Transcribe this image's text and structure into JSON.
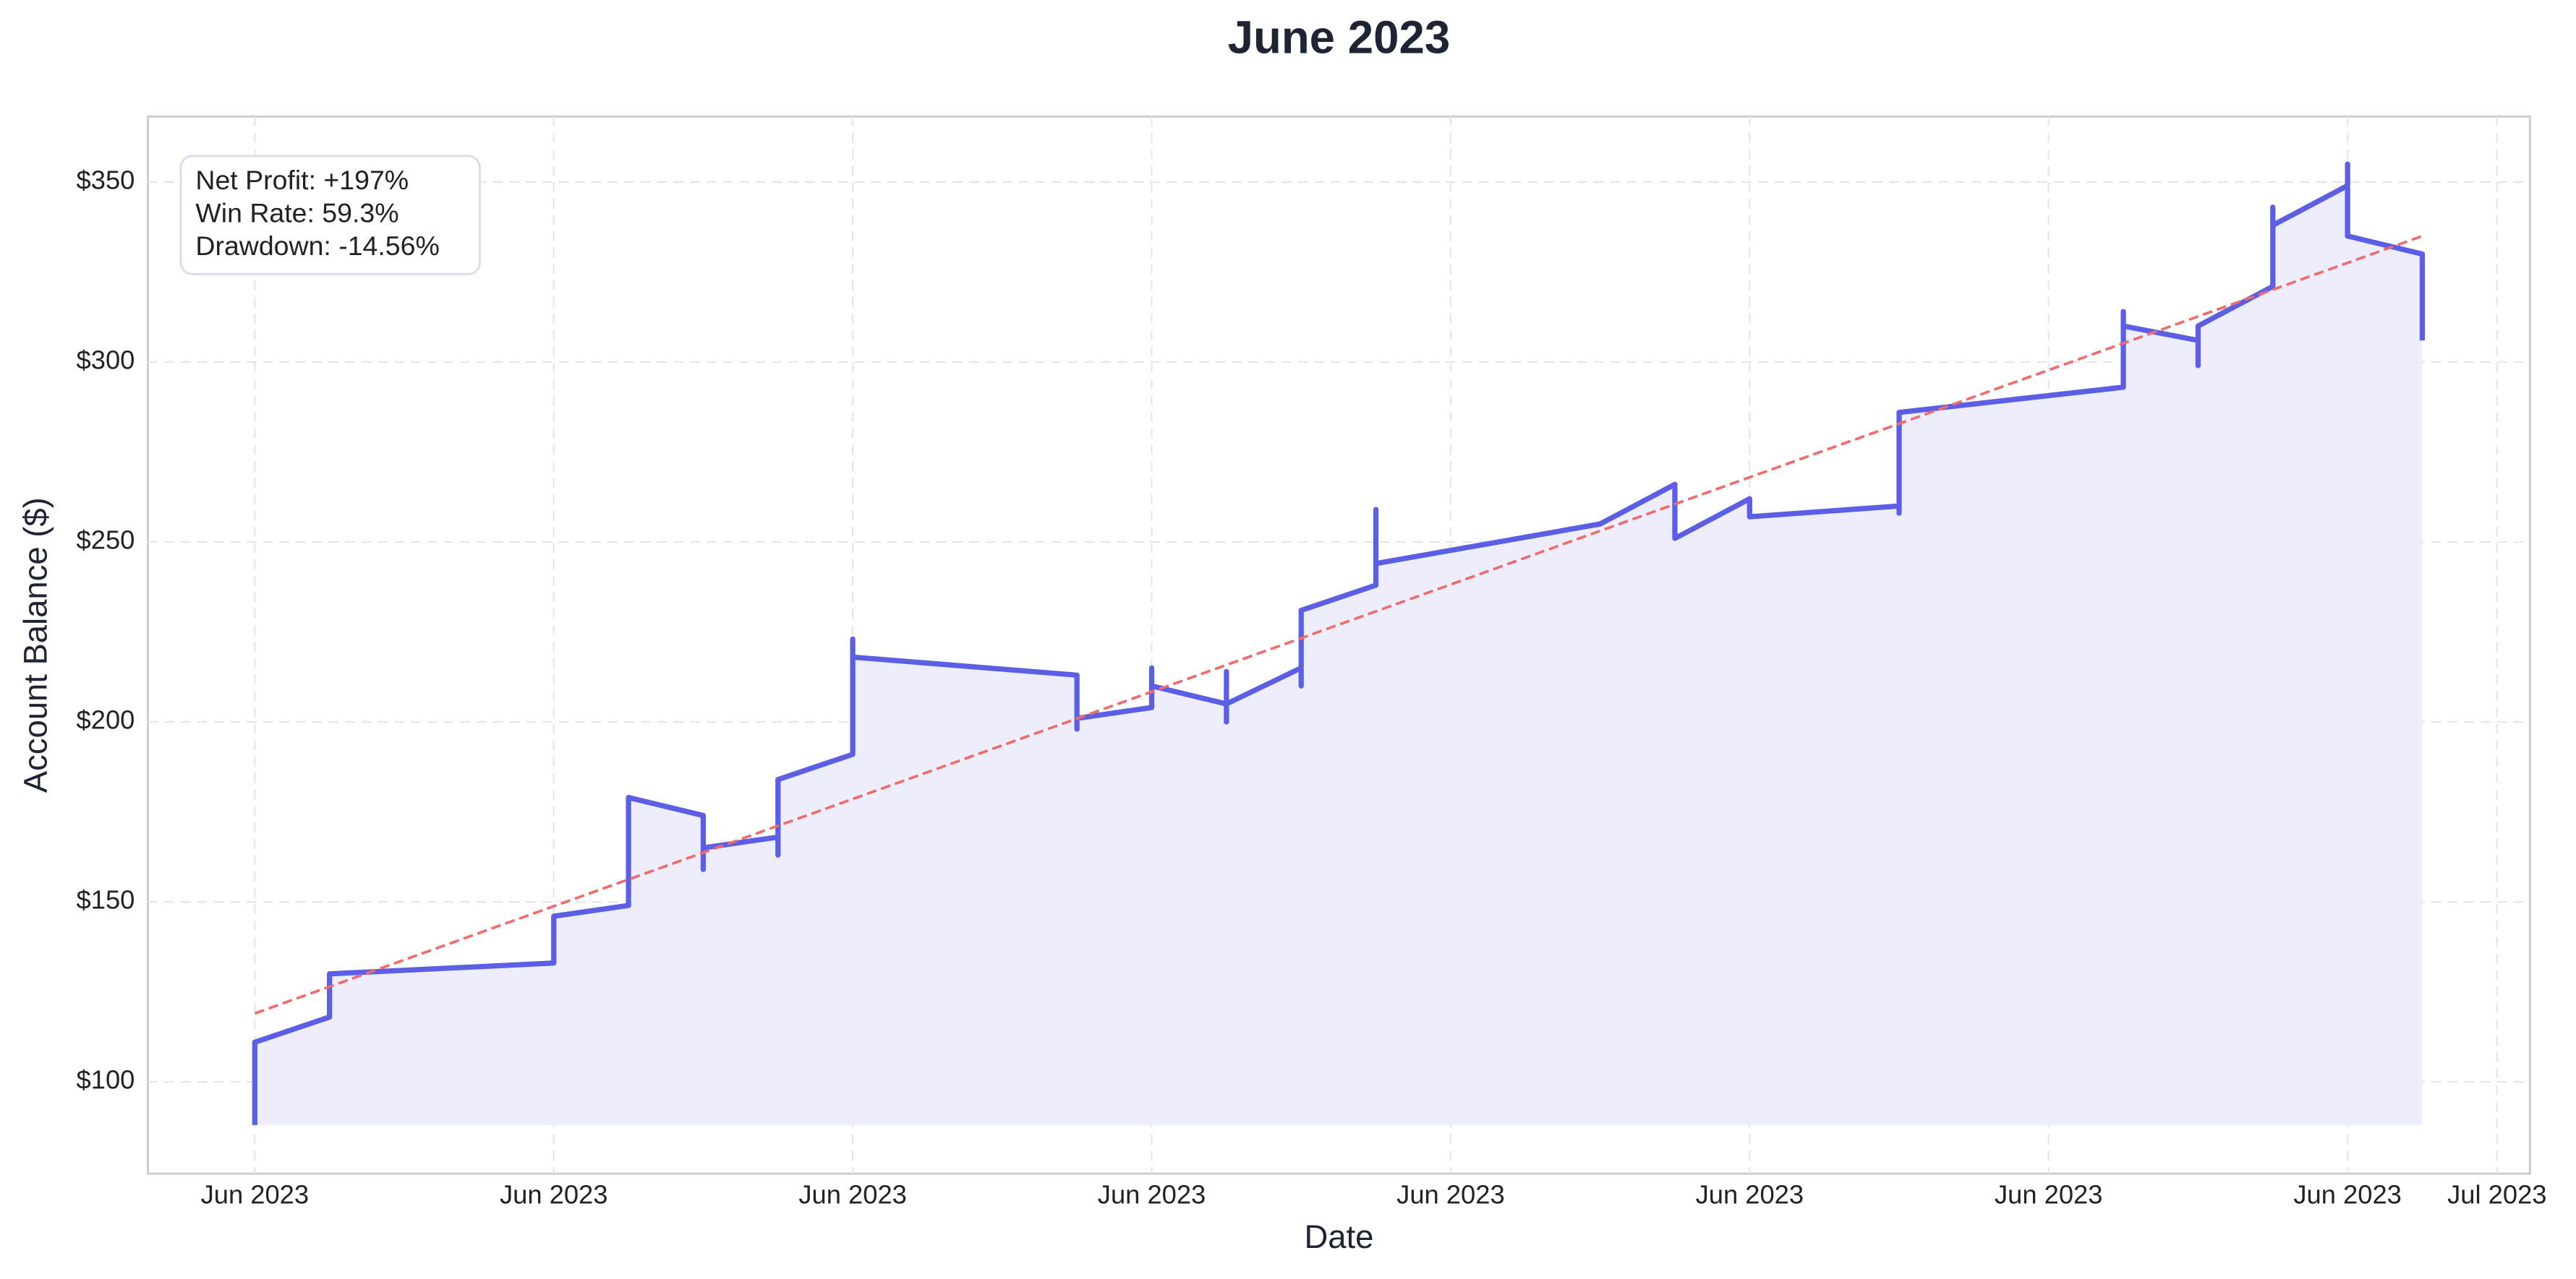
{
  "chart_data": {
    "type": "line",
    "title": "June 2023",
    "x_label": "Date",
    "y_label": "Account Balance ($)",
    "annotations": [
      "Net Profit: +197%",
      "Win Rate: 59.3%",
      "Drawdown: -14.56%"
    ],
    "xlim": [
      -0.43,
      31.44
    ],
    "ylim": [
      74.5,
      368.2
    ],
    "xticks": [
      {
        "value": 1,
        "label": "Jun 2023"
      },
      {
        "value": 5,
        "label": "Jun 2023"
      },
      {
        "value": 9,
        "label": "Jun 2023"
      },
      {
        "value": 13,
        "label": "Jun 2023"
      },
      {
        "value": 17,
        "label": "Jun 2023"
      },
      {
        "value": 21,
        "label": "Jun 2023"
      },
      {
        "value": 25,
        "label": "Jun 2023"
      },
      {
        "value": 29,
        "label": "Jun 2023"
      },
      {
        "value": 31,
        "label": "Jul 2023"
      }
    ],
    "yticks": [
      {
        "value": 100,
        "label": "$100"
      },
      {
        "value": 150,
        "label": "$150"
      },
      {
        "value": 200,
        "label": "$200"
      },
      {
        "value": 250,
        "label": "$250"
      },
      {
        "value": 300,
        "label": "$300"
      },
      {
        "value": 350,
        "label": "$350"
      }
    ],
    "grid": true,
    "series": [
      {
        "color": "#5c5fe5",
        "fill": "#ededfc",
        "style": "solid",
        "x": [
          1,
          1,
          2,
          2,
          5,
          5,
          6,
          6,
          7,
          7,
          7,
          8,
          8,
          8,
          9,
          9,
          9,
          12,
          12,
          12,
          13,
          13,
          13,
          14,
          14,
          14,
          14,
          15,
          15,
          15,
          16,
          16,
          16,
          19,
          20,
          20,
          21,
          21,
          23,
          23,
          23,
          26,
          26,
          26,
          27,
          27,
          27,
          28,
          28,
          28,
          29,
          29,
          29,
          30,
          30
        ],
        "values": [
          88,
          111,
          118,
          130,
          133,
          146,
          149,
          179,
          174,
          159,
          165,
          168,
          163,
          184,
          191,
          223,
          218,
          213,
          198,
          201,
          204,
          215,
          210,
          205,
          214,
          200,
          205,
          215,
          210,
          231,
          238,
          259,
          244,
          255,
          266,
          251,
          262,
          257,
          260,
          258,
          286,
          293,
          314,
          310,
          306,
          299,
          310,
          321,
          343,
          338,
          349,
          355,
          335,
          330,
          306
        ]
      },
      {
        "color": "#f06b6b",
        "style": "dashed",
        "x": [
          1,
          30
        ],
        "values": [
          119,
          335
        ]
      }
    ]
  }
}
